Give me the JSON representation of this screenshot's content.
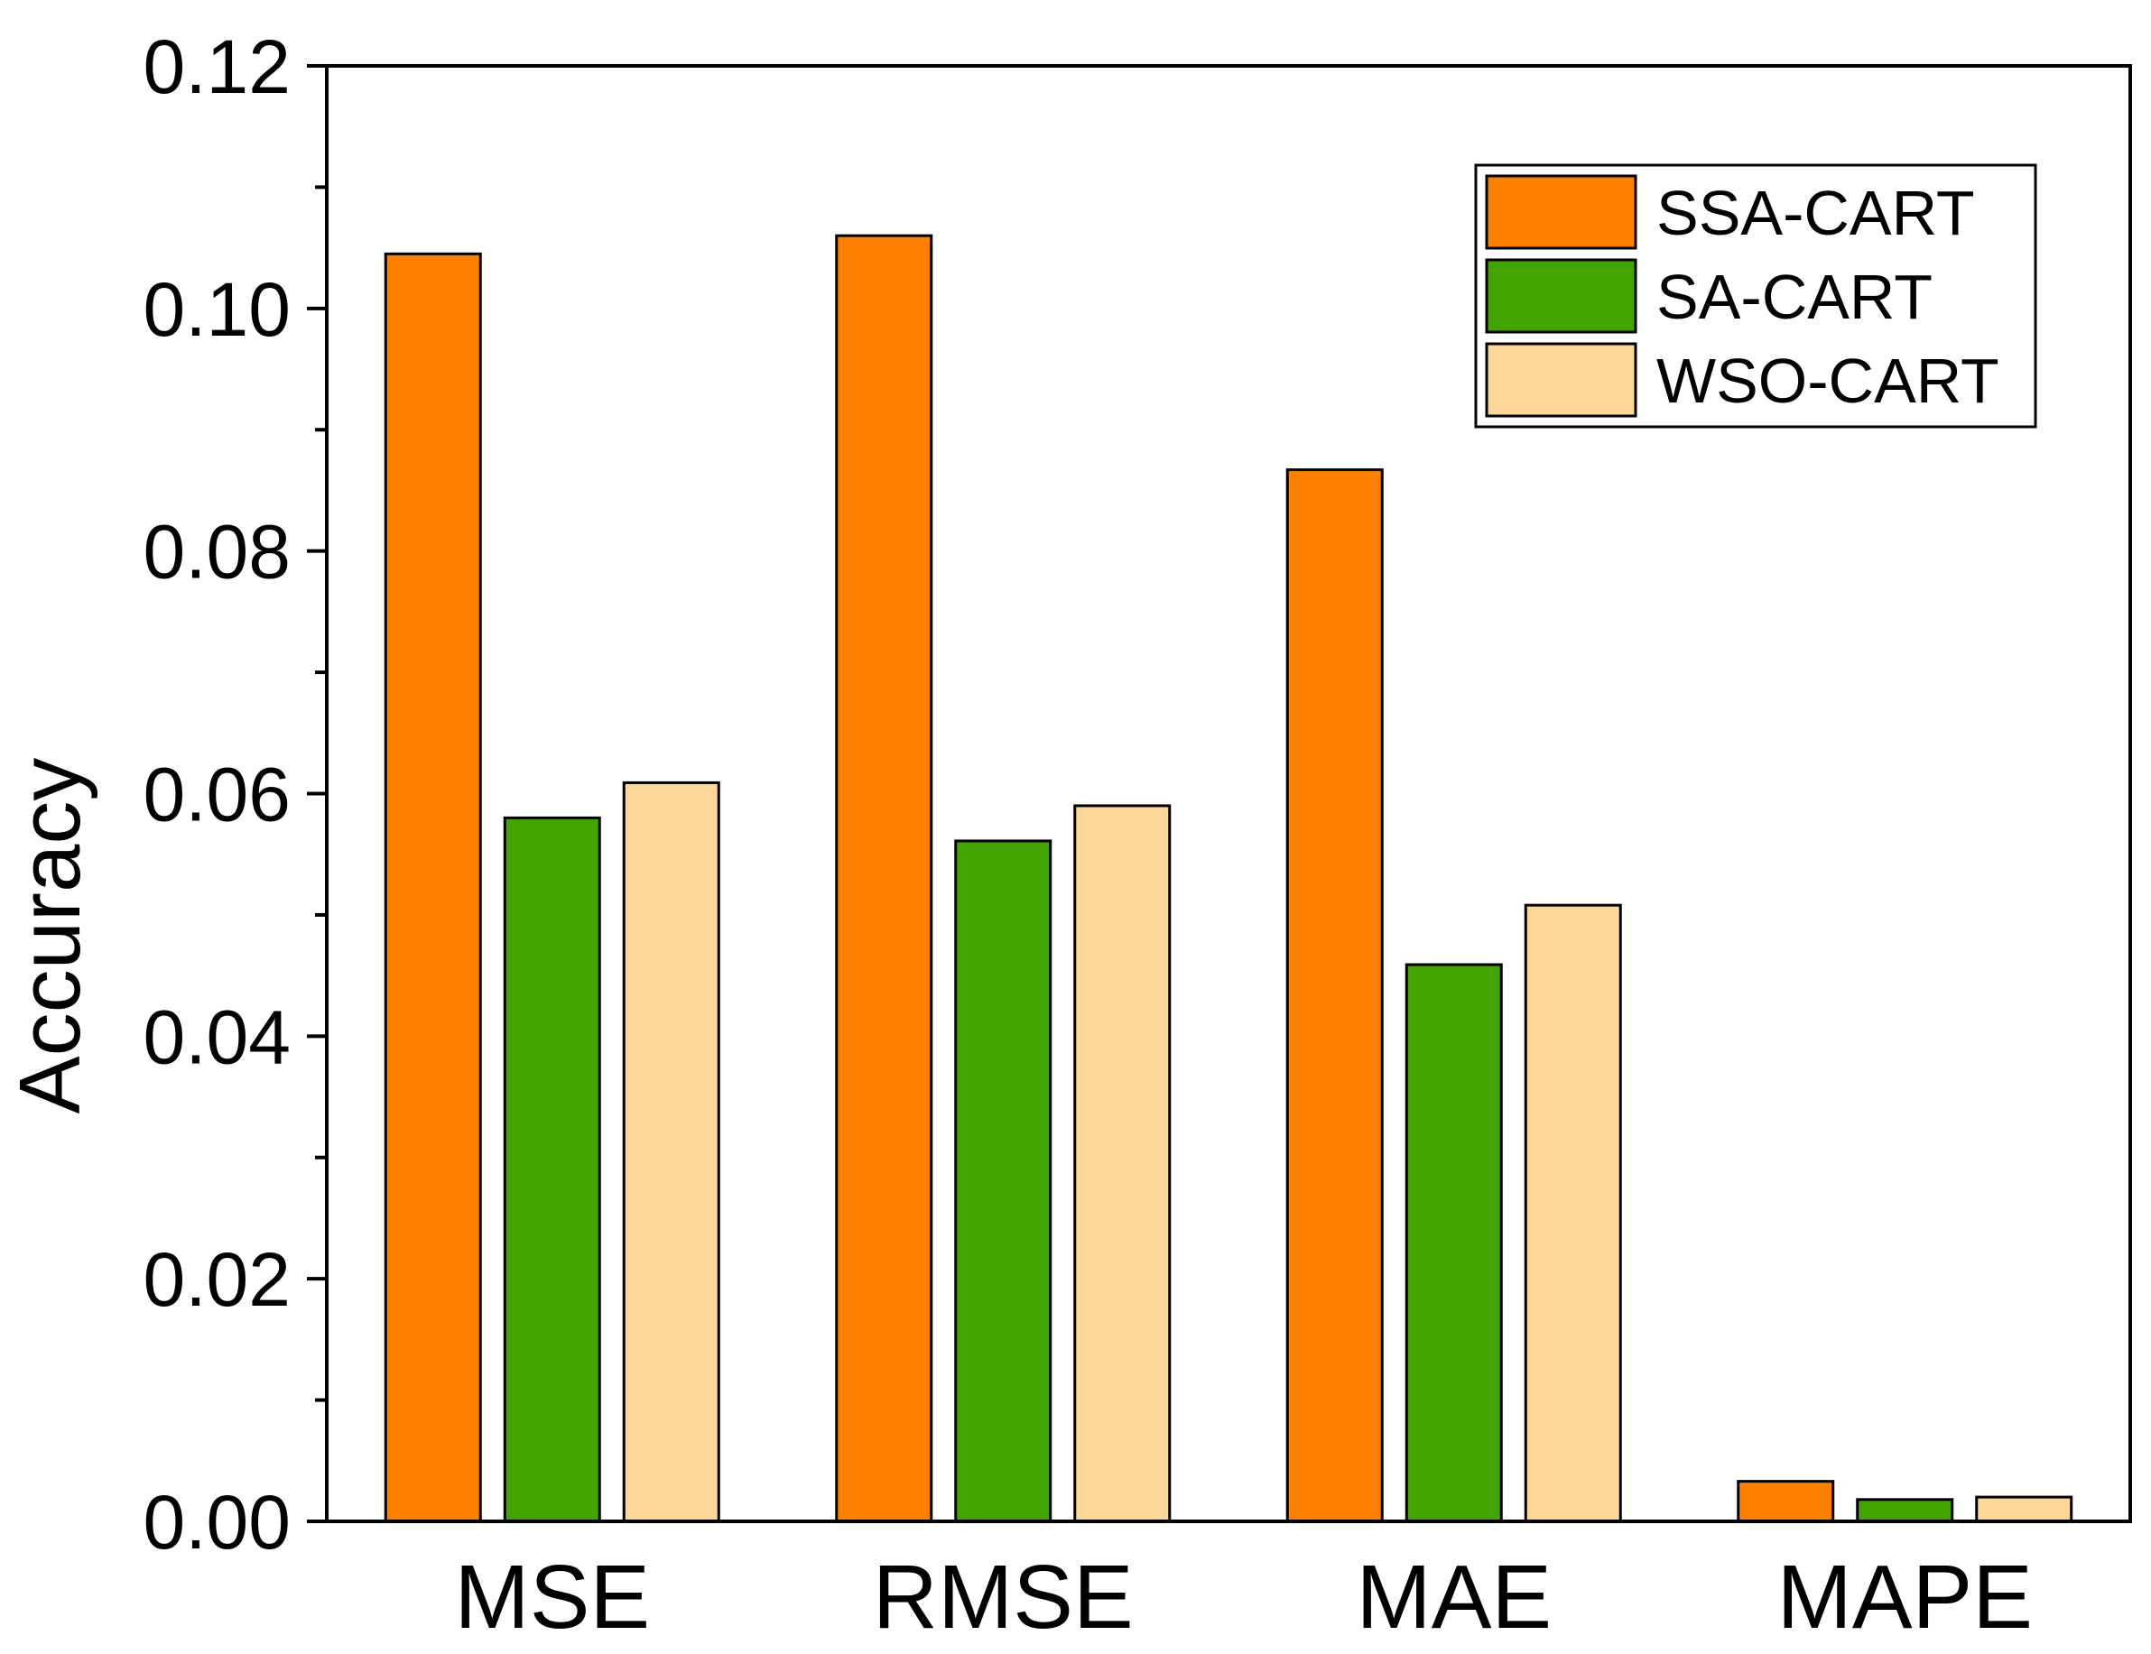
{
  "chart_data": {
    "type": "bar",
    "title": "",
    "xlabel": "",
    "ylabel": "Accuracy",
    "ylim": [
      0,
      0.12
    ],
    "yticks": [
      "0.00",
      "0.02",
      "0.04",
      "0.06",
      "0.08",
      "0.10",
      "0.12"
    ],
    "categories": [
      "MSE",
      "RMSE",
      "MAE",
      "MAPE"
    ],
    "legend_position": "top-right",
    "grid": false,
    "series": [
      {
        "name": "SSA-CART",
        "color": "#ff8000",
        "values": [
          0.1045,
          0.106,
          0.0867,
          0.0033
        ]
      },
      {
        "name": "SA-CART",
        "color": "#43a400",
        "values": [
          0.058,
          0.0561,
          0.0459,
          0.0018
        ]
      },
      {
        "name": "WSO-CART",
        "color": "#fdd799",
        "values": [
          0.0609,
          0.059,
          0.0508,
          0.002
        ]
      }
    ]
  }
}
